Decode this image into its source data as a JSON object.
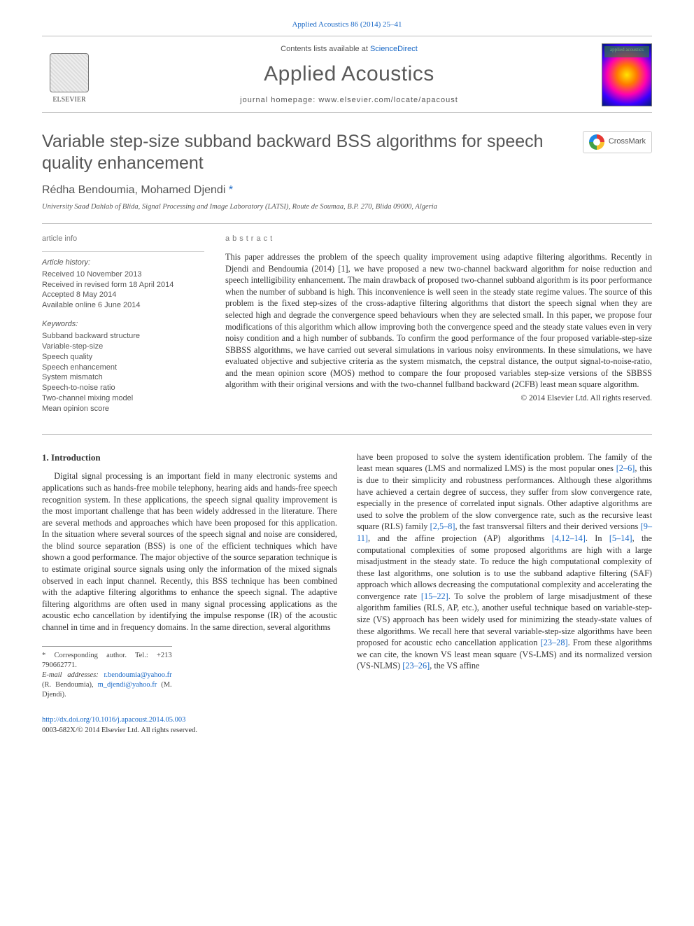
{
  "header": {
    "citation": "Applied Acoustics 86 (2014) 25–41",
    "contents_prefix": "Contents lists available at ",
    "contents_link": "ScienceDirect",
    "journal_title": "Applied Acoustics",
    "homepage_label": "journal homepage: www.elsevier.com/locate/apacoust",
    "publisher_name": "ELSEVIER",
    "cover_label": "applied acoustics"
  },
  "article": {
    "title": "Variable step-size subband backward BSS algorithms for speech quality enhancement",
    "crossmark_label": "CrossMark",
    "authors_prefix": "Rédha Bendoumia, Mohamed Djendi ",
    "corr_mark": "*",
    "affiliation": "University Saad Dahlab of Blida, Signal Processing and Image Laboratory (LATSI), Route de Soumaa, B.P. 270, Blida 09000, Algeria"
  },
  "info": {
    "article_info_head": "article info",
    "history_label": "Article history:",
    "history": [
      "Received 10 November 2013",
      "Received in revised form 18 April 2014",
      "Accepted 8 May 2014",
      "Available online 6 June 2014"
    ],
    "keywords_label": "Keywords:",
    "keywords": [
      "Subband backward structure",
      "Variable-step-size",
      "Speech quality",
      "Speech enhancement",
      "System mismatch",
      "Speech-to-noise ratio",
      "Two-channel mixing model",
      "Mean opinion score"
    ]
  },
  "abstract": {
    "head": "abstract",
    "text": "This paper addresses the problem of the speech quality improvement using adaptive filtering algorithms. Recently in Djendi and Bendoumia (2014) [1], we have proposed a new two-channel backward algorithm for noise reduction and speech intelligibility enhancement. The main drawback of proposed two-channel subband algorithm is its poor performance when the number of subband is high. This inconvenience is well seen in the steady state regime values. The source of this problem is the fixed step-sizes of the cross-adaptive filtering algorithms that distort the speech signal when they are selected high and degrade the convergence speed behaviours when they are selected small. In this paper, we propose four modifications of this algorithm which allow improving both the convergence speed and the steady state values even in very noisy condition and a high number of subbands. To confirm the good performance of the four proposed variable-step-size SBBSS algorithms, we have carried out several simulations in various noisy environments. In these simulations, we have evaluated objective and subjective criteria as the system mismatch, the cepstral distance, the output signal-to-noise-ratio, and the mean opinion score (MOS) method to compare the four proposed variables step-size versions of the SBBSS algorithm with their original versions and with the two-channel fullband backward (2CFB) least mean square algorithm.",
    "copyright": "© 2014 Elsevier Ltd. All rights reserved."
  },
  "body": {
    "section_head": "1. Introduction",
    "p1": "Digital signal processing is an important field in many electronic systems and applications such as hands-free mobile telephony, hearing aids and hands-free speech recognition system. In these applications, the speech signal quality improvement is the most important challenge that has been widely addressed in the literature. There are several methods and approaches which have been proposed for this application. In the situation where several sources of the speech signal and noise are considered, the blind source separation (BSS) is one of the efficient techniques which have shown a good performance. The major objective of the source separation technique is to estimate original source signals using only the information of the mixed signals observed in each input channel. Recently, this BSS technique has been combined with the adaptive filtering algorithms to enhance the speech signal. The adaptive filtering algorithms are often used in many signal processing applications as the acoustic echo cancellation by identifying the impulse response (IR) of the acoustic channel in time and in frequency domains. In the same direction, several algorithms",
    "p2a": "have been proposed to solve the system identification problem. The family of the least mean squares (LMS and normalized LMS) is the most popular ones ",
    "r1": "[2–6]",
    "p2b": ", this is due to their simplicity and robustness performances. Although these algorithms have achieved a certain degree of success, they suffer from slow convergence rate, especially in the presence of correlated input signals. Other adaptive algorithms are used to solve the problem of the slow convergence rate, such as the recursive least square (RLS) family ",
    "r2": "[2,5–8]",
    "p2c": ", the fast transversal filters and their derived versions ",
    "r3": "[9–11]",
    "p2d": ", and the affine projection (AP) algorithms ",
    "r4": "[4,12–14]",
    "p2e": ". In ",
    "r5": "[5–14]",
    "p2f": ", the computational complexities of some proposed algorithms are high with a large misadjustment in the steady state. To reduce the high computational complexity of these last algorithms, one solution is to use the subband adaptive filtering (SAF) approach which allows decreasing the computational complexity and accelerating the convergence rate ",
    "r6": "[15–22]",
    "p2g": ". To solve the problem of large misadjustment of these algorithm families (RLS, AP, etc.), another useful technique based on variable-step-size (VS) approach has been widely used for minimizing the steady-state values of these algorithms. We recall here that several variable-step-size algorithms have been proposed for acoustic echo cancellation application ",
    "r7": "[23–28]",
    "p2h": ". From these algorithms we can cite, the known VS least mean square (VS-LMS) and its normalized version (VS-NLMS) ",
    "r8": "[23–26]",
    "p2i": ", the VS affine"
  },
  "footer": {
    "corr_label": "* Corresponding author. Tel.: +213 790662771.",
    "email_label": "E-mail addresses: ",
    "email1": "r.bendoumia@yahoo.fr",
    "email1_who": " (R. Bendoumia), ",
    "email2": "m_djendi@yahoo.fr",
    "email2_who": " (M. Djendi).",
    "doi": "http://dx.doi.org/10.1016/j.apacoust.2014.05.003",
    "issn_line": "0003-682X/© 2014 Elsevier Ltd. All rights reserved."
  }
}
